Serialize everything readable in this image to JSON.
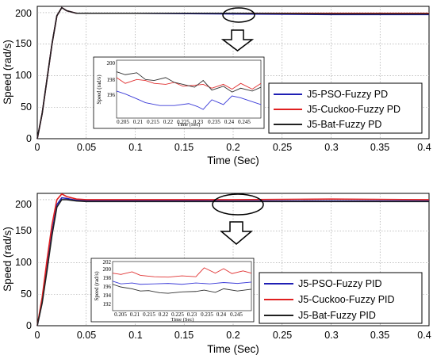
{
  "chart_data": [
    {
      "type": "line",
      "xlabel": "Time (Sec)",
      "ylabel": "Speed (rad/s)",
      "xlim": [
        0,
        0.4
      ],
      "ylim": [
        0,
        210
      ],
      "xticks": [
        "0",
        "0.05",
        "0.1",
        "0.15",
        "0.2",
        "0.25",
        "0.3",
        "0.35",
        "0.4"
      ],
      "yticks": [
        "0",
        "50",
        "100",
        "150",
        "200"
      ],
      "grid": true,
      "legend_position": "right",
      "annotation": "ellipse around t≈0.2–0.23 s with arrow pointing to inset zoom",
      "series": [
        {
          "name": "J5-PSO-Fuzzy PD",
          "color": "#1f1fb4",
          "x": [
            0,
            0.005,
            0.01,
            0.015,
            0.02,
            0.025,
            0.03,
            0.04,
            0.05,
            0.1,
            0.2,
            0.3,
            0.4
          ],
          "y": [
            0,
            40,
            95,
            150,
            195,
            208,
            203,
            199,
            199,
            199,
            198,
            197,
            197
          ]
        },
        {
          "name": "J5-Cuckoo-Fuzzy PD",
          "color": "#e02020",
          "x": [
            0,
            0.005,
            0.01,
            0.015,
            0.02,
            0.025,
            0.03,
            0.04,
            0.05,
            0.1,
            0.2,
            0.3,
            0.4
          ],
          "y": [
            0,
            40,
            95,
            150,
            195,
            208,
            203,
            199,
            199,
            199,
            199,
            199,
            199
          ]
        },
        {
          "name": "J5-Bat-Fuzzy PD",
          "color": "#202020",
          "x": [
            0,
            0.005,
            0.01,
            0.015,
            0.02,
            0.025,
            0.03,
            0.04,
            0.05,
            0.1,
            0.2,
            0.3,
            0.4
          ],
          "y": [
            0,
            40,
            95,
            150,
            195,
            208,
            203,
            199,
            199,
            199,
            199,
            198,
            198
          ]
        }
      ],
      "inset": {
        "xlabel": "Time (Sec)",
        "ylabel": "Speed (rad/s)",
        "xlim": [
          0.2,
          0.25
        ],
        "ylim": [
          195,
          201
        ],
        "xticks": [
          "0.205",
          "0.21",
          "0.215",
          "0.22",
          "0.225",
          "0.23",
          "0.235",
          "0.24",
          "0.245"
        ],
        "yticks": [
          "196",
          "198",
          "200"
        ],
        "series": [
          {
            "name": "J5-PSO-Fuzzy PD",
            "color": "#3b3bd8",
            "x": [
              0.2,
              0.203,
              0.207,
              0.21,
              0.215,
              0.22,
              0.225,
              0.228,
              0.23,
              0.233,
              0.237,
              0.24,
              0.243,
              0.247,
              0.25
            ],
            "y": [
              197.8,
              197.5,
              197,
              196.6,
              196.3,
              196.3,
              196.5,
              196.2,
              195.9,
              196.9,
              196.4,
              197.3,
              197.1,
              196.7,
              196.4
            ]
          },
          {
            "name": "J5-Cuckoo-Fuzzy PD",
            "color": "#e03030",
            "x": [
              0.2,
              0.203,
              0.207,
              0.21,
              0.213,
              0.217,
              0.22,
              0.223,
              0.227,
              0.23,
              0.233,
              0.237,
              0.24,
              0.243,
              0.247,
              0.25
            ],
            "y": [
              199.2,
              198.6,
              199,
              198.9,
              198.6,
              198.5,
              198.7,
              198.3,
              198.4,
              198.5,
              198.1,
              198.5,
              198.0,
              198.6,
              198.0,
              198.6
            ]
          },
          {
            "name": "J5-Bat-Fuzzy PD",
            "color": "#303030",
            "x": [
              0.2,
              0.203,
              0.207,
              0.21,
              0.213,
              0.217,
              0.22,
              0.223,
              0.227,
              0.23,
              0.233,
              0.237,
              0.24,
              0.243,
              0.247,
              0.25
            ],
            "y": [
              199.8,
              199.5,
              199.7,
              199.0,
              198.9,
              199.2,
              198.7,
              198.5,
              198.2,
              198.9,
              197.9,
              198.3,
              197.7,
              198.1,
              197.8,
              198.2
            ]
          }
        ]
      }
    },
    {
      "type": "line",
      "xlabel": "Time (Sec)",
      "ylabel": "Speed (rad/s)",
      "xlim": [
        0,
        0.4
      ],
      "ylim": [
        0,
        210
      ],
      "xticks": [
        "0",
        "0.05",
        "0.1",
        "0.15",
        "0.2",
        "0.25",
        "0.3",
        "0.35",
        "0.4"
      ],
      "yticks": [
        "0",
        "50",
        "100",
        "150",
        "200"
      ],
      "grid": true,
      "legend_position": "right",
      "annotation": "ellipse around t≈0.2–0.23 s with arrow pointing to inset zoom",
      "series": [
        {
          "name": "J5-PSO-Fuzzy PID",
          "color": "#1f1fb4",
          "x": [
            0,
            0.005,
            0.01,
            0.015,
            0.02,
            0.025,
            0.03,
            0.04,
            0.05,
            0.1,
            0.2,
            0.3,
            0.4
          ],
          "y": [
            0,
            38,
            92,
            148,
            192,
            203,
            202,
            199,
            199,
            199,
            198,
            198,
            198
          ]
        },
        {
          "name": "J5-Cuckoo-Fuzzy PID",
          "color": "#e02020",
          "x": [
            0,
            0.005,
            0.01,
            0.015,
            0.02,
            0.025,
            0.03,
            0.04,
            0.05,
            0.1,
            0.2,
            0.3,
            0.4
          ],
          "y": [
            0,
            45,
            105,
            160,
            200,
            209,
            205,
            201,
            200,
            200,
            200,
            201,
            200
          ]
        },
        {
          "name": "J5-Bat-Fuzzy PID",
          "color": "#202020",
          "x": [
            0,
            0.005,
            0.01,
            0.015,
            0.02,
            0.025,
            0.03,
            0.04,
            0.05,
            0.1,
            0.2,
            0.3,
            0.4
          ],
          "y": [
            0,
            36,
            88,
            143,
            188,
            200,
            200,
            198,
            197,
            197,
            197,
            197,
            197
          ]
        }
      ],
      "inset": {
        "xlabel": "Time (Sec)",
        "ylabel": "Speed (rad/s)",
        "xlim": [
          0.2,
          0.25
        ],
        "ylim": [
          192,
          203
        ],
        "xticks": [
          "0.205",
          "0.21",
          "0.215",
          "0.22",
          "0.225",
          "0.23",
          "0.235",
          "0.24",
          "0.245"
        ],
        "yticks": [
          "192",
          "194",
          "196",
          "198",
          "200",
          "202"
        ],
        "series": [
          {
            "name": "J5-PSO-Fuzzy PID",
            "color": "#3b3bd8",
            "x": [
              0.2,
              0.203,
              0.207,
              0.21,
              0.215,
              0.22,
              0.225,
              0.23,
              0.235,
              0.24,
              0.245,
              0.25
            ],
            "y": [
              198.6,
              198.0,
              198.2,
              197.9,
              198.0,
              198.1,
              197.9,
              198.2,
              198.0,
              198.3,
              198.1,
              198.4
            ]
          },
          {
            "name": "J5-Cuckoo-Fuzzy PID",
            "color": "#e03030",
            "x": [
              0.2,
              0.203,
              0.207,
              0.21,
              0.215,
              0.22,
              0.225,
              0.23,
              0.233,
              0.237,
              0.24,
              0.243,
              0.247,
              0.25
            ],
            "y": [
              200.4,
              200.1,
              200.7,
              199.9,
              199.6,
              199.5,
              199.8,
              199.6,
              201.6,
              200.4,
              201.4,
              200.3,
              200.9,
              200.4
            ]
          },
          {
            "name": "J5-Bat-Fuzzy PID",
            "color": "#303030",
            "x": [
              0.2,
              0.203,
              0.207,
              0.21,
              0.213,
              0.217,
              0.22,
              0.225,
              0.23,
              0.233,
              0.237,
              0.24,
              0.245,
              0.25
            ],
            "y": [
              197.9,
              197.3,
              196.9,
              196.4,
              196.5,
              196.0,
              195.9,
              196.2,
              196.3,
              196.6,
              196.1,
              196.9,
              196.4,
              196.8
            ]
          }
        ]
      }
    }
  ]
}
